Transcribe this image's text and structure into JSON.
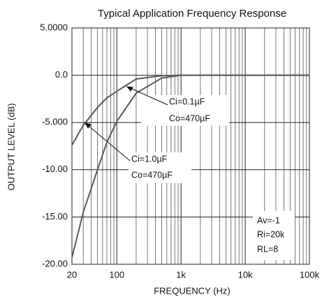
{
  "chart_data": {
    "type": "line",
    "title": "Typical Application Frequency Response",
    "x_label": "FREQUENCY (Hz)",
    "y_label": "OUTPUT LEVEL (dB)",
    "log_x": true,
    "x": [
      20,
      30,
      50,
      70,
      100,
      200,
      500,
      1000,
      10000,
      100000
    ],
    "series": [
      {
        "name": "Ci=0.1µF",
        "color": "#5a5a5a",
        "values": [
          -7.4,
          -5.3,
          -3.4,
          -2.4,
          -1.7,
          -0.4,
          -0.05,
          0,
          0,
          0
        ]
      },
      {
        "name": "Ci=1.0µF",
        "color": "#5a5a5a",
        "values": [
          -19.3,
          -14.5,
          -10,
          -7.1,
          -4.9,
          -1.9,
          -0.3,
          0,
          0,
          0
        ]
      }
    ],
    "xlim": [
      20,
      100000
    ],
    "ylim": [
      -20,
      5
    ],
    "xticks": [
      20,
      100,
      {
        "value": 1000,
        "label": "1k"
      },
      {
        "value": 10000,
        "label": "10k"
      },
      {
        "value": 100000,
        "label": "100k"
      }
    ],
    "xminor": [
      30,
      40,
      50,
      60,
      70,
      80,
      90,
      200,
      300,
      400,
      500,
      600,
      700,
      800,
      900,
      2000,
      3000,
      4000,
      5000,
      6000,
      7000,
      8000,
      9000,
      20000,
      30000,
      40000,
      50000,
      60000,
      70000,
      80000,
      90000
    ],
    "yticks": [
      {
        "value": 5,
        "label": "5.0000"
      },
      {
        "value": 0,
        "label": "0.0"
      },
      {
        "value": -5,
        "label": "-5.000"
      },
      {
        "value": -10,
        "label": "-10.00"
      },
      {
        "value": -15,
        "label": "-15.00"
      },
      {
        "value": -20,
        "label": "-20.00"
      }
    ],
    "grid": true,
    "annotations": [
      "Ci=0.1µF",
      "Co=470µF",
      "Ci=1.0µF",
      "Co=470µF",
      "Av=-1",
      "Ri=20k",
      "RL=8"
    ]
  }
}
